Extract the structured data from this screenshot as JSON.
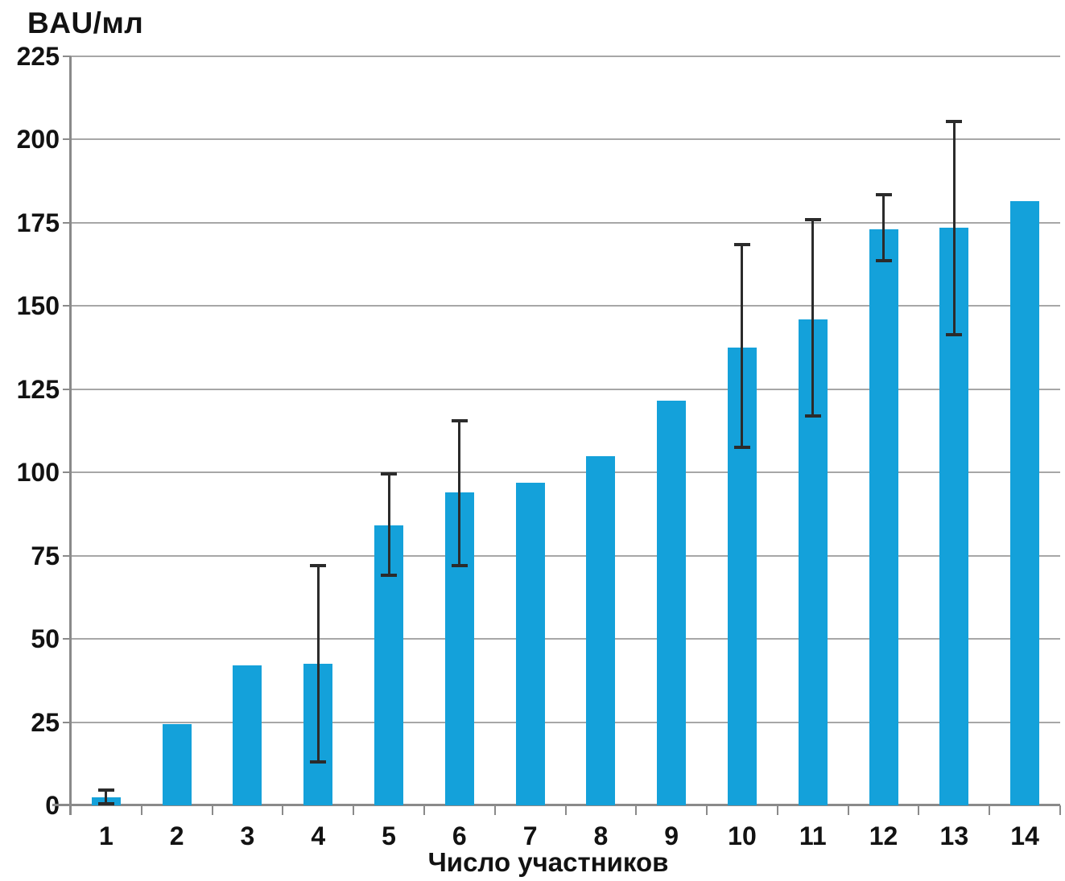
{
  "chart_data": {
    "type": "bar",
    "title": "BAU/мл",
    "xlabel": "Число участников",
    "ylabel": "",
    "categories": [
      "1",
      "2",
      "3",
      "4",
      "5",
      "6",
      "7",
      "8",
      "9",
      "10",
      "11",
      "12",
      "13",
      "14"
    ],
    "values": [
      2.5,
      24.5,
      42,
      42.5,
      84,
      94,
      97,
      105,
      121.5,
      137.5,
      146,
      173,
      173.5,
      181.5
    ],
    "error_bars": [
      {
        "low": 0.5,
        "high": 4.5
      },
      null,
      null,
      {
        "low": 13,
        "high": 72
      },
      {
        "low": 69,
        "high": 99.5
      },
      {
        "low": 72,
        "high": 115.5
      },
      null,
      null,
      null,
      {
        "low": 107.5,
        "high": 168.5
      },
      {
        "low": 117,
        "high": 176
      },
      {
        "low": 163.5,
        "high": 183.5
      },
      {
        "low": 141.5,
        "high": 205.5
      },
      null
    ],
    "ylim": [
      0,
      225
    ],
    "yticks": [
      0,
      25,
      50,
      75,
      100,
      125,
      150,
      175,
      200,
      225
    ],
    "grid": "horizontal",
    "legend": "none",
    "bar_color": "#14a1da",
    "error_color": "#2b2b2b",
    "gridline_color": "#a7a7a7",
    "axis_color": "#8a8a8a",
    "text_color": "#121212"
  }
}
